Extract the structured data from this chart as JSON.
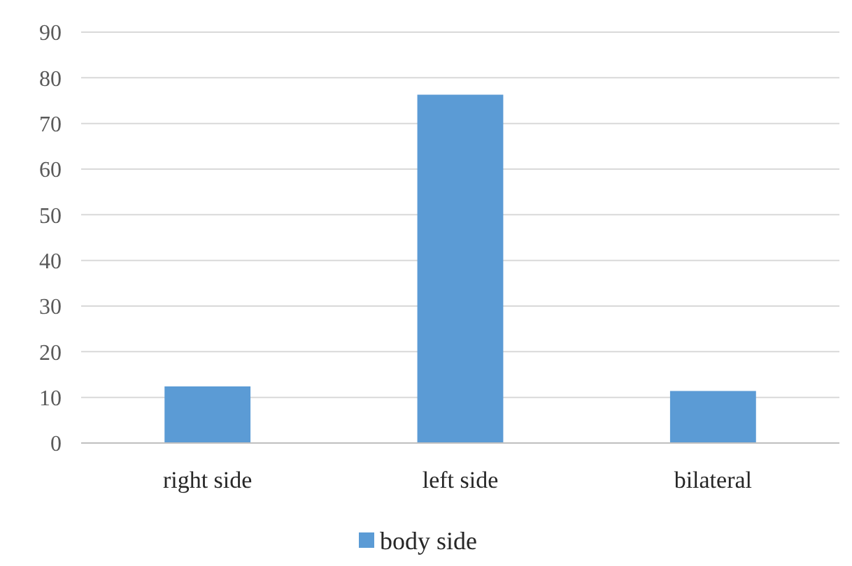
{
  "chart_data": {
    "type": "bar",
    "categories": [
      "right side",
      "left side",
      "bilateral"
    ],
    "series": [
      {
        "name": "body side",
        "color": "#5b9bd5",
        "values": [
          12.4,
          76.3,
          11.4
        ]
      }
    ],
    "ylim": [
      0,
      90
    ],
    "yticks": [
      0,
      10,
      20,
      30,
      40,
      50,
      60,
      70,
      80,
      90
    ],
    "grid": "y",
    "legend": "bottom"
  }
}
